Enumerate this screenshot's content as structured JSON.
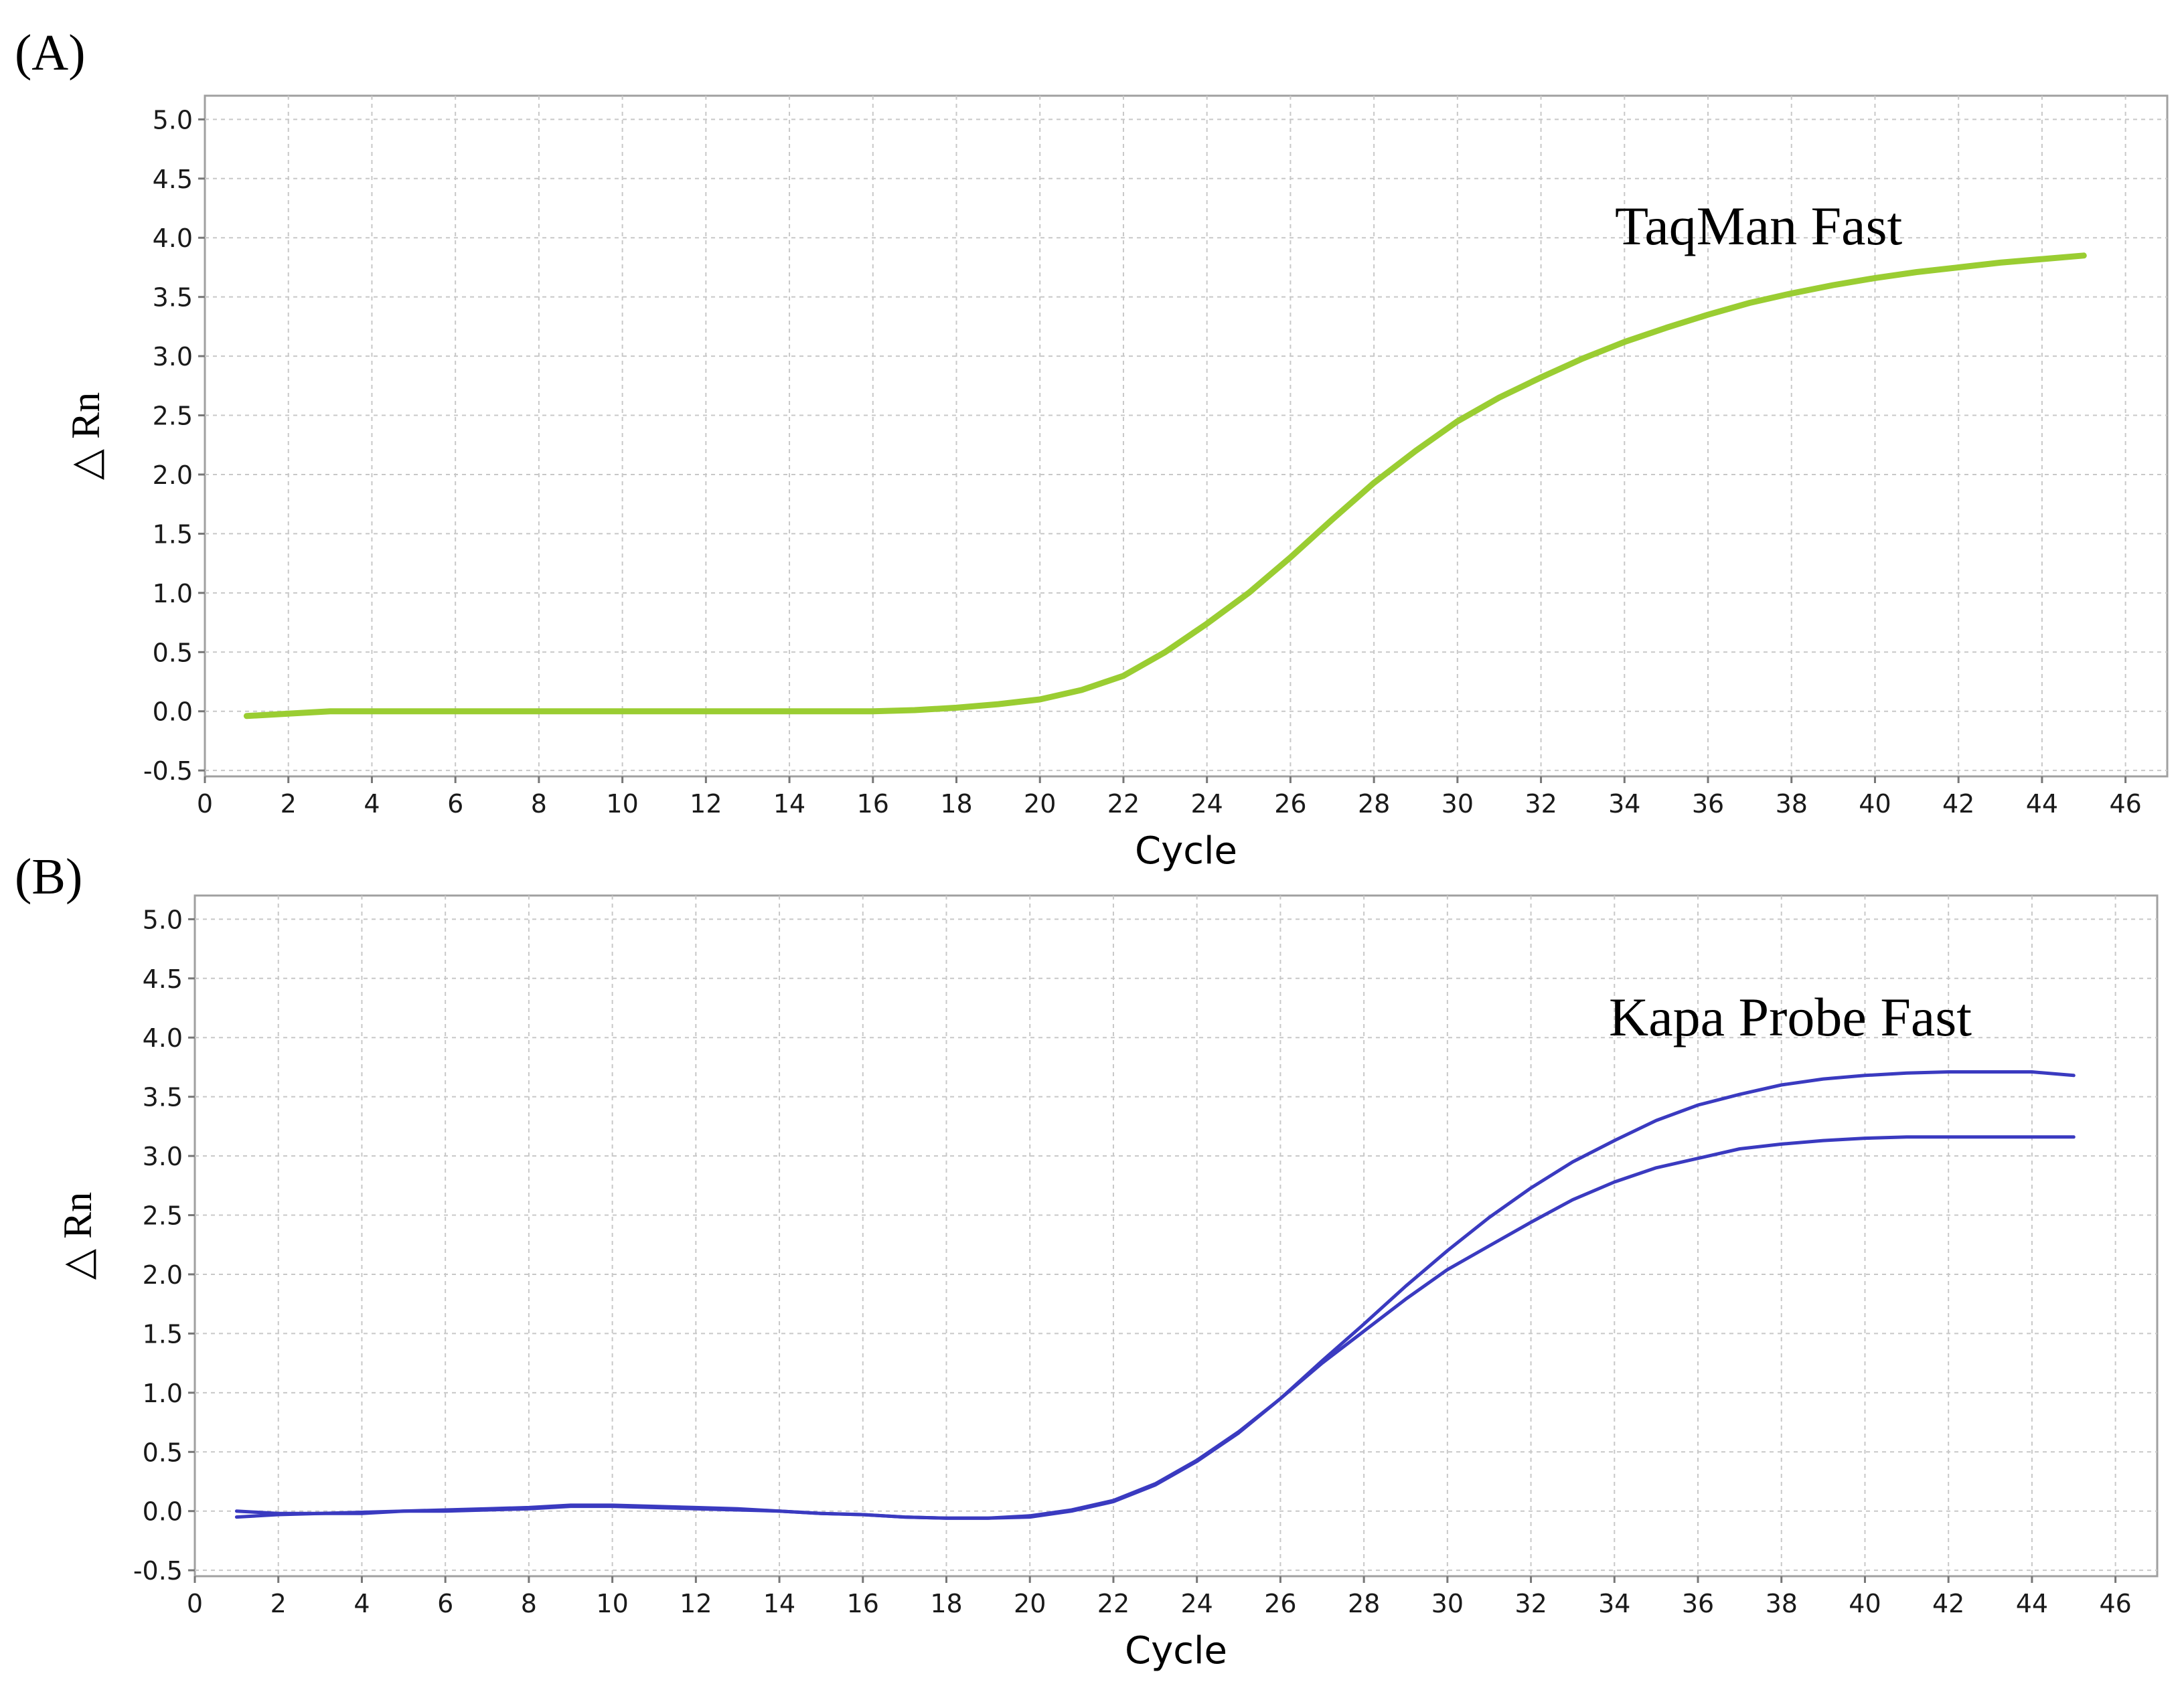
{
  "chart_data": [
    {
      "type": "line",
      "panel_label": "(A)",
      "annotation": "TaqMan Fast",
      "xlabel": "Cycle",
      "ylabel": "△ Rn",
      "xlim": [
        0,
        47
      ],
      "ylim": [
        -0.55,
        5.2
      ],
      "xticks": [
        0,
        2,
        4,
        6,
        8,
        10,
        12,
        14,
        16,
        18,
        20,
        22,
        24,
        26,
        28,
        30,
        32,
        34,
        36,
        38,
        40,
        42,
        44,
        46
      ],
      "yticks": [
        "-0.5",
        "0.0",
        "0.5",
        "1.0",
        "1.5",
        "2.0",
        "2.5",
        "3.0",
        "3.5",
        "4.0",
        "4.5",
        "5.0"
      ],
      "grid": true,
      "colors": {
        "line": "#9ACD32",
        "frame": "#a0a0a0",
        "grid": "#c8c8c8"
      },
      "series": [
        {
          "x": [
            1,
            2,
            3,
            4,
            6,
            8,
            10,
            12,
            14,
            16,
            17,
            18,
            19,
            20,
            21,
            22,
            23,
            24,
            25,
            26,
            27,
            28,
            29,
            30,
            31,
            32,
            33,
            34,
            35,
            36,
            37,
            38,
            39,
            40,
            41,
            42,
            43,
            44,
            45
          ],
          "y": [
            -0.04,
            -0.02,
            0,
            0,
            0,
            0,
            0,
            0,
            0,
            0,
            0.01,
            0.03,
            0.06,
            0.1,
            0.18,
            0.3,
            0.5,
            0.74,
            1.0,
            1.3,
            1.62,
            1.93,
            2.2,
            2.45,
            2.65,
            2.82,
            2.98,
            3.12,
            3.24,
            3.35,
            3.45,
            3.53,
            3.6,
            3.66,
            3.71,
            3.75,
            3.79,
            3.82,
            3.85
          ]
        }
      ]
    },
    {
      "type": "line",
      "panel_label": "(B)",
      "annotation": "Kapa  Probe Fast",
      "xlabel": "Cycle",
      "ylabel": "△ Rn",
      "xlim": [
        0,
        47
      ],
      "ylim": [
        -0.55,
        5.2
      ],
      "xticks": [
        0,
        2,
        4,
        6,
        8,
        10,
        12,
        14,
        16,
        18,
        20,
        22,
        24,
        26,
        28,
        30,
        32,
        34,
        36,
        38,
        40,
        42,
        44,
        46
      ],
      "yticks": [
        "-0.5",
        "0.0",
        "0.5",
        "1.0",
        "1.5",
        "2.0",
        "2.5",
        "3.0",
        "3.5",
        "4.0",
        "4.5",
        "5.0"
      ],
      "grid": true,
      "colors": {
        "line": "#3A3AC0",
        "frame": "#a0a0a0",
        "grid": "#c8c8c8"
      },
      "series": [
        {
          "x": [
            1,
            2,
            3,
            4,
            5,
            6,
            7,
            8,
            9,
            10,
            11,
            12,
            13,
            14,
            15,
            16,
            17,
            18,
            19,
            20,
            21,
            22,
            23,
            24,
            25,
            26,
            27,
            28,
            29,
            30,
            31,
            32,
            33,
            34,
            35,
            36,
            37,
            38,
            39,
            40,
            41,
            42,
            43,
            44,
            45
          ],
          "y": [
            0,
            -0.02,
            -0.02,
            -0.02,
            0,
            0,
            0.01,
            0.02,
            0.04,
            0.04,
            0.03,
            0.02,
            0.01,
            0,
            -0.02,
            -0.03,
            -0.05,
            -0.06,
            -0.06,
            -0.05,
            0,
            0.08,
            0.22,
            0.42,
            0.66,
            0.95,
            1.27,
            1.58,
            1.9,
            2.2,
            2.48,
            2.73,
            2.95,
            3.13,
            3.3,
            3.43,
            3.52,
            3.6,
            3.65,
            3.68,
            3.7,
            3.71,
            3.71,
            3.71,
            3.68
          ]
        },
        {
          "x": [
            1,
            2,
            3,
            4,
            5,
            6,
            7,
            8,
            9,
            10,
            11,
            12,
            13,
            14,
            15,
            16,
            17,
            18,
            19,
            20,
            21,
            22,
            23,
            24,
            25,
            26,
            27,
            28,
            29,
            30,
            31,
            32,
            33,
            34,
            35,
            36,
            37,
            38,
            39,
            40,
            41,
            42,
            43,
            44,
            45
          ],
          "y": [
            -0.05,
            -0.03,
            -0.02,
            -0.01,
            0,
            0.01,
            0.02,
            0.03,
            0.05,
            0.05,
            0.04,
            0.03,
            0.02,
            0,
            -0.02,
            -0.03,
            -0.05,
            -0.06,
            -0.06,
            -0.04,
            0.01,
            0.09,
            0.23,
            0.43,
            0.67,
            0.95,
            1.25,
            1.52,
            1.79,
            2.04,
            2.24,
            2.44,
            2.63,
            2.78,
            2.9,
            2.98,
            3.06,
            3.1,
            3.13,
            3.15,
            3.16,
            3.16,
            3.16,
            3.16,
            3.16
          ]
        }
      ]
    }
  ]
}
